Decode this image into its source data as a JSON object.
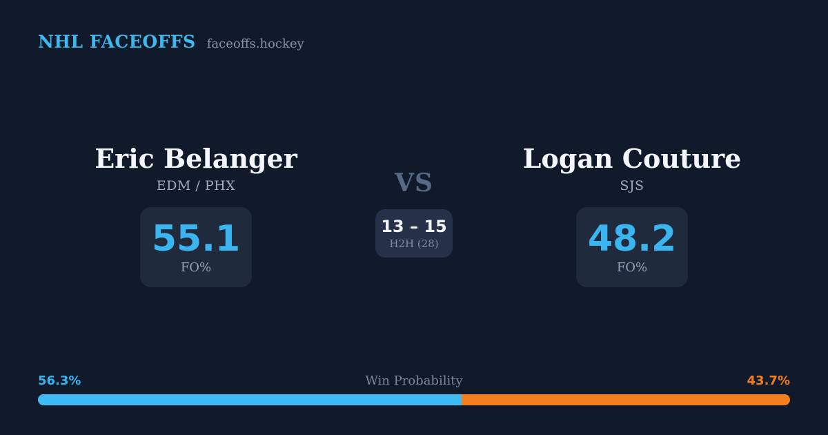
{
  "brand": {
    "title": "NHL FACEOFFS",
    "domain": "faceoffs.hockey"
  },
  "players": {
    "left": {
      "name": "Eric Belanger",
      "teams": "EDM / PHX",
      "stat_value": "55.1",
      "stat_label": "FO%"
    },
    "right": {
      "name": "Logan Couture",
      "teams": "SJS",
      "stat_value": "48.2",
      "stat_label": "FO%"
    }
  },
  "matchup": {
    "vs_label": "VS",
    "h2h_score": "13 – 15",
    "h2h_label": "H2H (28)"
  },
  "win_probability": {
    "title": "Win Probability",
    "left_pct_label": "56.3%",
    "right_pct_label": "43.7%",
    "left_value": 56.3,
    "right_value": 43.7
  },
  "colors": {
    "background": "#111A2B",
    "stat_card": "#1F2A3D",
    "h2h_card": "#263149",
    "accent_blue": "#3CBCF2",
    "accent_orange": "#F67E1F",
    "text_white": "#F3F6FA",
    "text_gray": "#9FABBF"
  }
}
